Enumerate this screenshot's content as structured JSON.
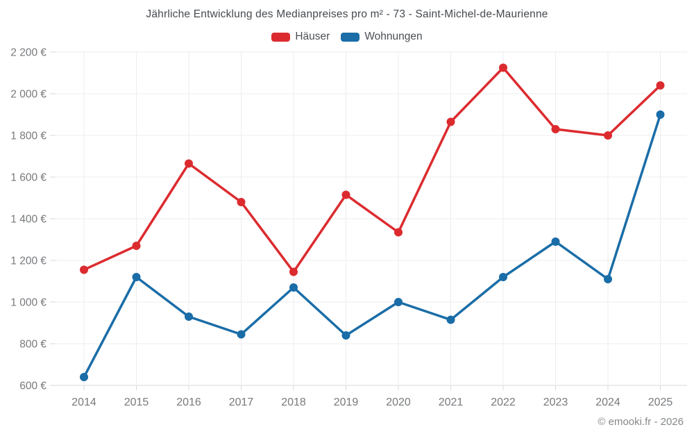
{
  "title": "Jährliche Entwicklung des Medianpreises pro m² - 73 - Saint-Michel-de-Maurienne",
  "legend": [
    {
      "label": "Häuser",
      "color": "#dc2b2f"
    },
    {
      "label": "Wohnungen",
      "color": "#1a6da7"
    }
  ],
  "footer": "© emooki.fr - 2026",
  "colors": {
    "haeuser": "#dc2b2f",
    "wohnungen": "#1a6da7",
    "grid": "#ededed",
    "axis": "#d9d9d9",
    "tick_label": "#77797c"
  },
  "chart_data": {
    "type": "line",
    "title": "Jährliche Entwicklung des Medianpreises pro m² - 73 - Saint-Michel-de-Maurienne",
    "categories": [
      "2014",
      "2015",
      "2016",
      "2017",
      "2018",
      "2019",
      "2020",
      "2021",
      "2022",
      "2023",
      "2024",
      "2025"
    ],
    "series": [
      {
        "name": "Häuser",
        "color": "#dc2b2f",
        "values": [
          1155,
          1270,
          1665,
          1480,
          1145,
          1515,
          1335,
          1865,
          2125,
          1830,
          1800,
          2040
        ]
      },
      {
        "name": "Wohnungen",
        "color": "#1a6da7",
        "values": [
          640,
          1120,
          930,
          845,
          1070,
          840,
          1000,
          915,
          1120,
          1290,
          1110,
          1900
        ]
      }
    ],
    "xlabel": "",
    "ylabel": "",
    "ylim": [
      600,
      2200
    ],
    "y_ticks": [
      600,
      800,
      1000,
      1200,
      1400,
      1600,
      1800,
      2000,
      2200
    ],
    "y_tick_labels": [
      "600 €",
      "800 €",
      "1 000 €",
      "1 200 €",
      "1 400 €",
      "1 600 €",
      "1 800 €",
      "2 000 €",
      "2 200 €"
    ],
    "grid": true,
    "legend_position": "top",
    "currency": "€"
  }
}
